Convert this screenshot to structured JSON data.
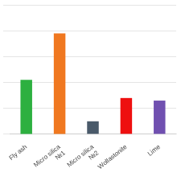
{
  "chart_data": {
    "type": "bar",
    "categories": [
      "Fly ash",
      "Micro silica\n№1",
      "Micro silica\n№2",
      "Wollastonite",
      "Lime"
    ],
    "values": [
      42,
      78,
      10,
      28,
      26
    ],
    "colors": [
      "#2db040",
      "#f07820",
      "#4a5a6a",
      "#ee1010",
      "#7050b0"
    ],
    "ylim": [
      0,
      100
    ],
    "yticks": [
      0,
      20,
      40,
      60,
      80,
      100
    ],
    "grid": true,
    "tick_labels": "x"
  }
}
